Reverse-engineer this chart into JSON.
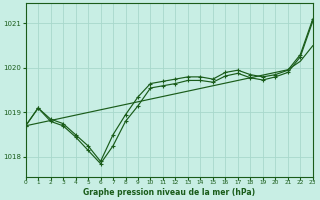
{
  "title": "Graphe pression niveau de la mer (hPa)",
  "bg_color": "#c8eee4",
  "line_color": "#1a5c1a",
  "grid_color": "#a8d8cc",
  "xlim": [
    0,
    23
  ],
  "ylim": [
    1017.55,
    1021.45
  ],
  "yticks": [
    1018,
    1019,
    1020,
    1021
  ],
  "xticks": [
    0,
    1,
    2,
    3,
    4,
    5,
    6,
    7,
    8,
    9,
    10,
    11,
    12,
    13,
    14,
    15,
    16,
    17,
    18,
    19,
    20,
    21,
    22,
    23
  ],
  "series1_dip": [
    1018.7,
    1019.1,
    1018.85,
    1018.75,
    1018.5,
    1018.25,
    1017.9,
    1018.5,
    1018.95,
    1019.35,
    1019.65,
    1019.7,
    1019.75,
    1019.8,
    1019.8,
    1019.75,
    1019.9,
    1019.95,
    1019.85,
    1019.8,
    1019.85,
    1019.95,
    1020.3,
    1021.1
  ],
  "series2_dip": [
    1018.7,
    1019.1,
    1018.8,
    1018.7,
    1018.45,
    1018.15,
    1017.85,
    1018.25,
    1018.8,
    1019.15,
    1019.55,
    1019.6,
    1019.65,
    1019.72,
    1019.72,
    1019.68,
    1019.82,
    1019.88,
    1019.78,
    1019.73,
    1019.8,
    1019.9,
    1020.25,
    1021.05
  ],
  "series3_linear": [
    1018.7,
    1018.76,
    1018.82,
    1018.88,
    1018.94,
    1019.0,
    1019.06,
    1019.12,
    1019.18,
    1019.24,
    1019.3,
    1019.36,
    1019.42,
    1019.48,
    1019.54,
    1019.6,
    1019.66,
    1019.72,
    1019.78,
    1019.84,
    1019.9,
    1019.96,
    1020.15,
    1020.5
  ]
}
